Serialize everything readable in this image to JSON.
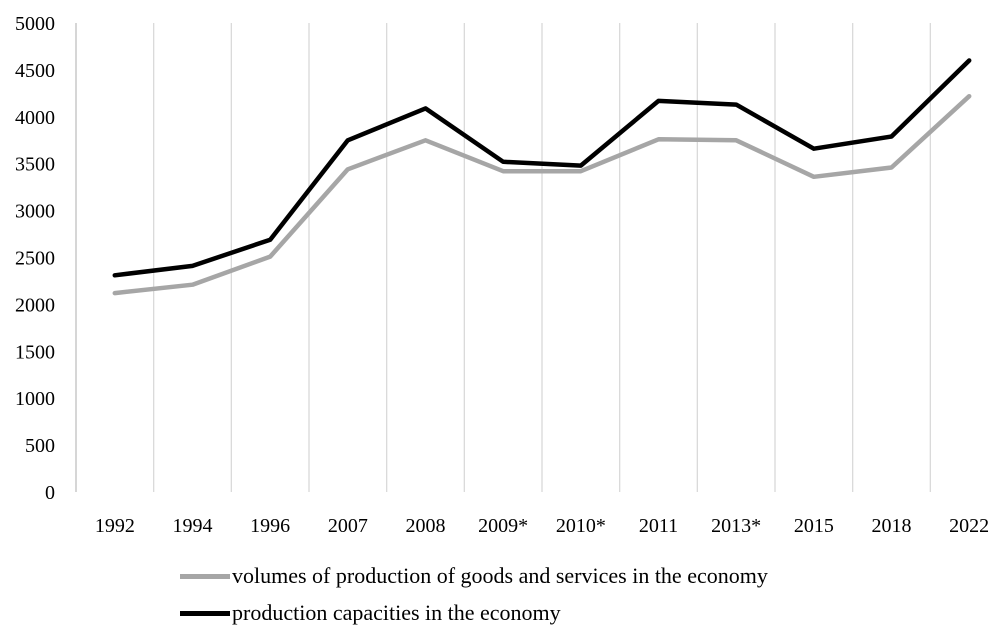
{
  "chart_data": {
    "type": "line",
    "categories": [
      "1992",
      "1994",
      "1996",
      "2007",
      "2008",
      "2009*",
      "2010*",
      "2011",
      "2013*",
      "2015",
      "2018",
      "2022"
    ],
    "series": [
      {
        "name": "volumes of production of goods and services in the economy",
        "color": "#a6a6a6",
        "values": [
          2120,
          2210,
          2510,
          3440,
          3750,
          3420,
          3420,
          3760,
          3750,
          3360,
          3460,
          4220
        ]
      },
      {
        "name": "production capacities in the economy",
        "color": "#000000",
        "values": [
          2310,
          2410,
          2690,
          3750,
          4090,
          3520,
          3480,
          4170,
          4130,
          3660,
          3790,
          4600
        ]
      }
    ],
    "ylim": [
      0,
      5000
    ],
    "yticks": [
      "0",
      "500",
      "1000",
      "1500",
      "2000",
      "2500",
      "3000",
      "3500",
      "4000",
      "4500",
      "5000"
    ],
    "grid": "vertical",
    "legend_position": "bottom"
  }
}
